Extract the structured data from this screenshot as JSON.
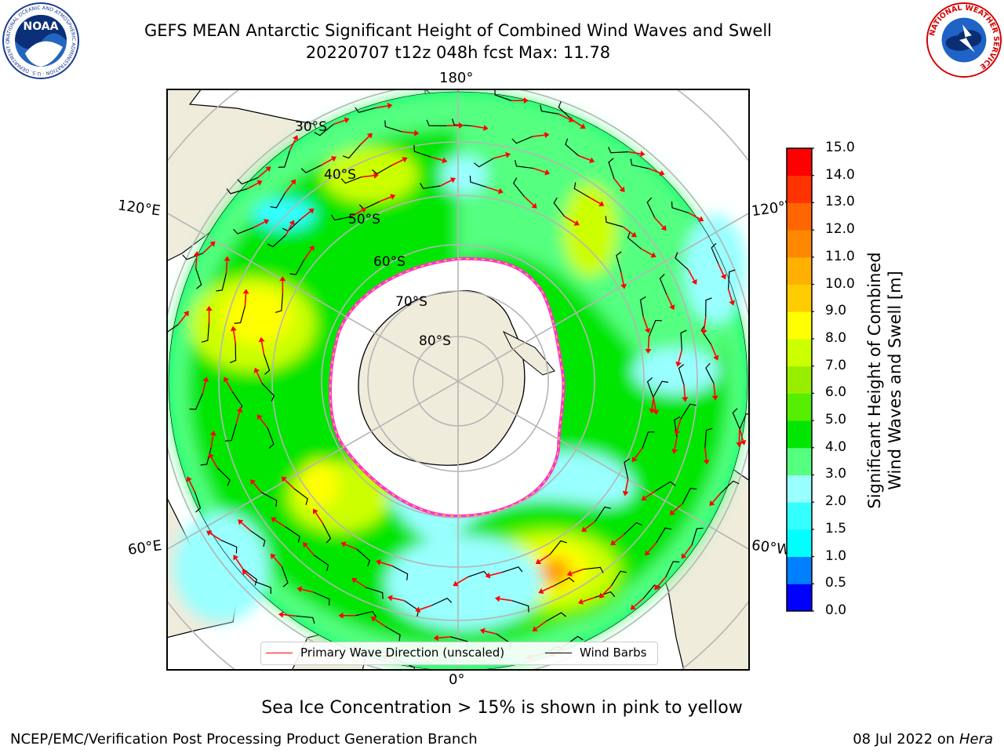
{
  "header": {
    "title_line1": "GEFS MEAN Antarctic Significant Height of Combined Wind Waves and Swell",
    "title_line2": "20220707 t12z 048h fcst   Max: 11.78"
  },
  "logos": {
    "left": {
      "name": "NOAA",
      "ring_text": "NATIONAL OCEANIC AND ATMOSPHERIC ADMINISTRATION · U.S. DEPARTMENT OF COMMERCE ·"
    },
    "right": {
      "name": "NATIONAL WEATHER SERVICE"
    }
  },
  "map": {
    "longitude_labels": {
      "top": "180°",
      "bottom": "0°",
      "left_upper": "120°E",
      "right_upper": "120°W",
      "left_lower": "60°E",
      "right_lower": "60°W"
    },
    "latitude_labels": [
      "30°S",
      "40°S",
      "50°S",
      "60°S",
      "70°S",
      "80°S"
    ],
    "land_color": "#efecdc",
    "ice_color": "#ffffff",
    "ice_edge_colors": [
      "#ff66ff",
      "#ff33cc",
      "#ffcc33"
    ],
    "wave_arrow_color": "#ff0000",
    "wind_barb_color": "#000000"
  },
  "legend": {
    "primary_wave": "Primary Wave Direction (unscaled)",
    "wind_barbs": "Wind Barbs",
    "primary_wave_color": "#ff0000",
    "wind_barbs_color": "#000000"
  },
  "colorbar": {
    "label_line1": "Significant Height of Combined",
    "label_line2": "Wind Waves and Swell [m]",
    "ticks": [
      "15.0",
      "14.0",
      "13.0",
      "12.0",
      "11.0",
      "10.0",
      "9.0",
      "8.0",
      "7.0",
      "6.0",
      "5.0",
      "4.0",
      "3.0",
      "2.0",
      "1.5",
      "1.0",
      "0.5",
      "0.0"
    ],
    "colors": [
      "#0000ff",
      "#007fff",
      "#00ffff",
      "#33ffff",
      "#99ffff",
      "#55ff80",
      "#00e600",
      "#55ee00",
      "#99ee00",
      "#ccff00",
      "#ffff00",
      "#ffcc00",
      "#ffb000",
      "#ff8800",
      "#ff6600",
      "#ff3300",
      "#ff0000"
    ]
  },
  "footer": {
    "ice_note": "Sea Ice Concentration > 15% is shown in pink to yellow",
    "credit": "NCEP/EMC/Verification Post Processing Product Generation Branch",
    "date": "08 Jul 2022 on",
    "host": "Hera"
  }
}
